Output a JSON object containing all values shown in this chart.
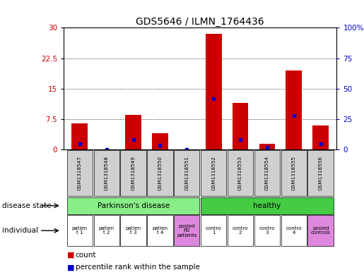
{
  "title": "GDS5646 / ILMN_1764436",
  "samples": [
    "GSM1318547",
    "GSM1318548",
    "GSM1318549",
    "GSM1318550",
    "GSM1318551",
    "GSM1318552",
    "GSM1318553",
    "GSM1318554",
    "GSM1318555",
    "GSM1318556"
  ],
  "counts": [
    6.5,
    0,
    8.5,
    4.0,
    0,
    28.5,
    11.5,
    1.5,
    19.5,
    6.0
  ],
  "percentile_ranks": [
    5.0,
    0,
    8.5,
    3.5,
    0,
    42.0,
    8.5,
    2.0,
    28.0,
    5.0
  ],
  "bar_color": "#cc0000",
  "blue_color": "#0000cc",
  "ylim_left": [
    0,
    30
  ],
  "ylim_right": [
    0,
    100
  ],
  "yticks_left": [
    0,
    7.5,
    15,
    22.5,
    30
  ],
  "yticks_right": [
    0,
    25,
    50,
    75,
    100
  ],
  "ytick_labels_left": [
    "0",
    "7.5",
    "15",
    "22.5",
    "30"
  ],
  "ytick_labels_right": [
    "0",
    "25",
    "50",
    "75",
    "100%"
  ],
  "individual_labels": [
    "patien\nt 1",
    "patien\nt 2",
    "patien\nt 3",
    "patien\nt 4",
    "pooled\nPD\npatients",
    "contro\n1",
    "contro\n2",
    "contro\n3",
    "contro\n4",
    "pooled\ncontrols"
  ],
  "individual_colors": [
    "#ffffff",
    "#ffffff",
    "#ffffff",
    "#ffffff",
    "#dd88dd",
    "#ffffff",
    "#ffffff",
    "#ffffff",
    "#ffffff",
    "#dd88dd"
  ],
  "disease_state_label": "disease state",
  "individual_label": "individual",
  "legend_count": "count",
  "legend_percentile": "percentile rank within the sample",
  "bg_color": "#ffffff",
  "tick_label_color_left": "#cc0000",
  "tick_label_color_right": "#0000cc",
  "pd_color": "#88ee88",
  "healthy_color": "#44cc44",
  "sample_box_color": "#d0d0d0"
}
